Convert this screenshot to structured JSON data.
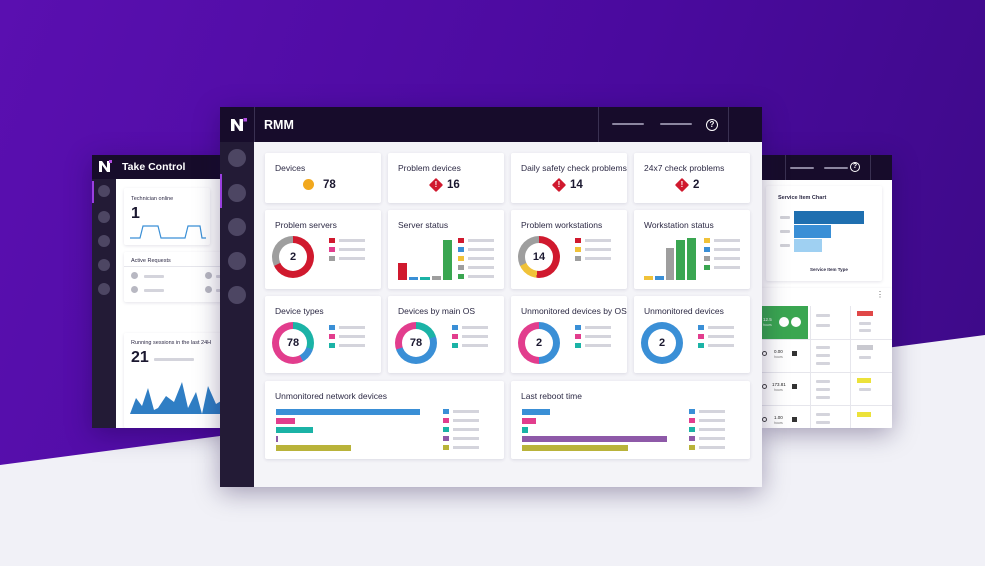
{
  "take_control": {
    "title": "Take Control",
    "tech_label": "Technician online",
    "tech_value": "1",
    "requests_label": "Active Requests",
    "sessions_label": "Running sessions in the last 24H",
    "sessions_value": "21"
  },
  "rmm": {
    "title": "RMM",
    "help": "?",
    "kpis": [
      {
        "label": "Devices",
        "value": "78"
      },
      {
        "label": "Problem devices",
        "value": "16"
      },
      {
        "label": "Daily safety check problems",
        "value": "14"
      },
      {
        "label": "24x7 check problems",
        "value": "2"
      }
    ],
    "row2": [
      {
        "label": "Problem servers",
        "value": "2"
      },
      {
        "label": "Server status"
      },
      {
        "label": "Problem workstations",
        "value": "14"
      },
      {
        "label": "Workstation status"
      }
    ],
    "row3": [
      {
        "label": "Device types",
        "value": "78"
      },
      {
        "label": "Devices by main OS",
        "value": "78"
      },
      {
        "label": "Unmonitored devices by OS",
        "value": "2"
      },
      {
        "label": "Unmonitored devices",
        "value": "2"
      }
    ],
    "row4": [
      {
        "label": "Unmonitored network devices"
      },
      {
        "label": "Last reboot time"
      }
    ],
    "warn_glyph": "!"
  },
  "right_panel": {
    "help": "?",
    "chart_title": "Service Item Chart",
    "chart_xlabel": "Service Item Type",
    "menu": "⋮",
    "row_values": [
      {
        "v": "0.00",
        "u": "hours"
      },
      {
        "v": "173.81",
        "u": "hours"
      },
      {
        "v": "1.00",
        "u": "hours"
      }
    ],
    "green_value": "12.5",
    "green_unit": "hours"
  },
  "colors": {
    "purple": "#4d0aa6",
    "blue": "#3a8fd6",
    "pink": "#e23d8d",
    "teal": "#1bb3a6",
    "green": "#3aa651",
    "red": "#d0192e",
    "yellow": "#f0c239",
    "grey": "#9e9e9e",
    "olive": "#b9b33a",
    "violet": "#8e59a8"
  },
  "chart_data": [
    {
      "type": "bar",
      "title": "Server status",
      "categories": [
        "1",
        "2",
        "3",
        "4",
        "5"
      ],
      "values": [
        17,
        3,
        3,
        4,
        40
      ]
    },
    {
      "type": "bar",
      "title": "Workstation status",
      "categories": [
        "1",
        "2",
        "3",
        "4",
        "5"
      ],
      "values": [
        4,
        4,
        32,
        40,
        42
      ]
    },
    {
      "type": "bar",
      "title": "Unmonitored network devices",
      "orientation": "horizontal",
      "categories": [
        "1",
        "2",
        "3",
        "4",
        "5"
      ],
      "values": [
        144,
        19,
        37,
        2,
        75
      ]
    },
    {
      "type": "bar",
      "title": "Last reboot time",
      "orientation": "horizontal",
      "categories": [
        "1",
        "2",
        "3",
        "4",
        "5"
      ],
      "values": [
        28,
        14,
        6,
        145,
        106
      ]
    },
    {
      "type": "bar",
      "title": "Service Item Chart",
      "orientation": "horizontal",
      "xlabel": "Service Item Type",
      "categories": [
        "1",
        "2",
        "3"
      ],
      "values": [
        70,
        37,
        28
      ]
    }
  ]
}
